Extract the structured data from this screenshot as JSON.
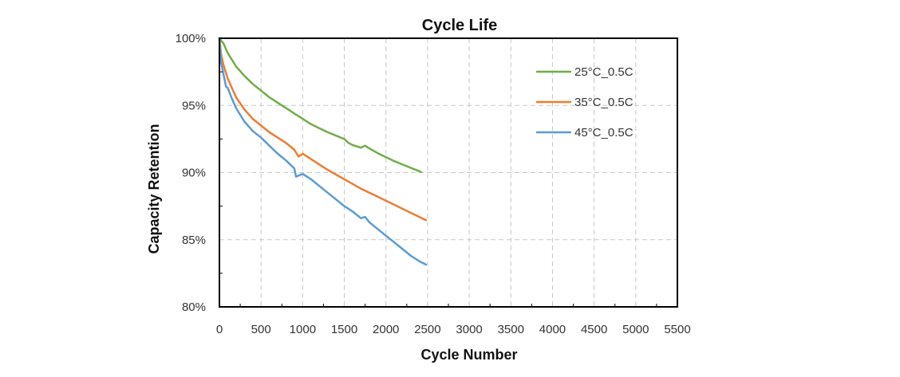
{
  "chart_data": {
    "type": "line",
    "title": "Cycle Life",
    "xlabel": "Cycle Number",
    "ylabel": "Capacity Retention",
    "xlim": [
      0,
      5500
    ],
    "ylim": [
      80,
      100
    ],
    "x_ticks": [
      0,
      500,
      1000,
      1500,
      2000,
      2500,
      3000,
      3500,
      4000,
      4500,
      5000,
      5500
    ],
    "x_tick_labels": [
      "0",
      "500",
      "1000",
      "1500",
      "2000",
      "2500",
      "3000",
      "3500",
      "4000",
      "4500",
      "5000",
      "5500"
    ],
    "y_ticks": [
      80,
      85,
      90,
      95,
      100
    ],
    "y_tick_labels": [
      "80%",
      "85%",
      "90%",
      "95%",
      "100%"
    ],
    "grid": true,
    "legend_position": "top-right",
    "series": [
      {
        "name": "25°C_0.5C",
        "color": "#70ad47",
        "x": [
          0,
          50,
          100,
          200,
          300,
          400,
          500,
          600,
          700,
          800,
          900,
          1000,
          1100,
          1200,
          1300,
          1400,
          1500,
          1550,
          1600,
          1700,
          1750,
          1800,
          1900,
          2000,
          2100,
          2200,
          2300,
          2420
        ],
        "y": [
          100,
          99.6,
          98.9,
          97.9,
          97.2,
          96.6,
          96.1,
          95.6,
          95.2,
          94.8,
          94.4,
          94.0,
          93.6,
          93.3,
          93.0,
          92.75,
          92.5,
          92.2,
          92.05,
          91.85,
          92.0,
          91.8,
          91.45,
          91.15,
          90.85,
          90.6,
          90.35,
          90.05
        ]
      },
      {
        "name": "35°C_0.5C",
        "color": "#ed7d31",
        "x": [
          0,
          20,
          50,
          100,
          200,
          300,
          400,
          500,
          600,
          700,
          800,
          900,
          950,
          1000,
          1100,
          1200,
          1300,
          1400,
          1500,
          1600,
          1700,
          1800,
          1900,
          2000,
          2100,
          2200,
          2300,
          2400,
          2480
        ],
        "y": [
          100,
          98.8,
          98.0,
          97.0,
          95.6,
          94.7,
          94.0,
          93.5,
          93.0,
          92.6,
          92.2,
          91.7,
          91.2,
          91.4,
          91.0,
          90.6,
          90.2,
          89.85,
          89.5,
          89.15,
          88.8,
          88.5,
          88.2,
          87.9,
          87.6,
          87.3,
          87.0,
          86.7,
          86.45
        ]
      },
      {
        "name": "45°C_0.5C",
        "color": "#5b9bd5",
        "x": [
          0,
          20,
          50,
          80,
          100,
          150,
          200,
          300,
          400,
          500,
          600,
          700,
          800,
          900,
          920,
          1000,
          1100,
          1200,
          1300,
          1400,
          1500,
          1600,
          1700,
          1750,
          1800,
          1900,
          2000,
          2100,
          2200,
          2300,
          2400,
          2480
        ],
        "y": [
          100,
          98.2,
          97.3,
          96.4,
          96.3,
          95.5,
          94.8,
          93.8,
          93.1,
          92.6,
          92.0,
          91.4,
          90.9,
          90.3,
          89.7,
          89.9,
          89.5,
          89.0,
          88.5,
          88.0,
          87.5,
          87.1,
          86.6,
          86.7,
          86.3,
          85.8,
          85.3,
          84.8,
          84.3,
          83.8,
          83.4,
          83.15
        ]
      }
    ]
  }
}
